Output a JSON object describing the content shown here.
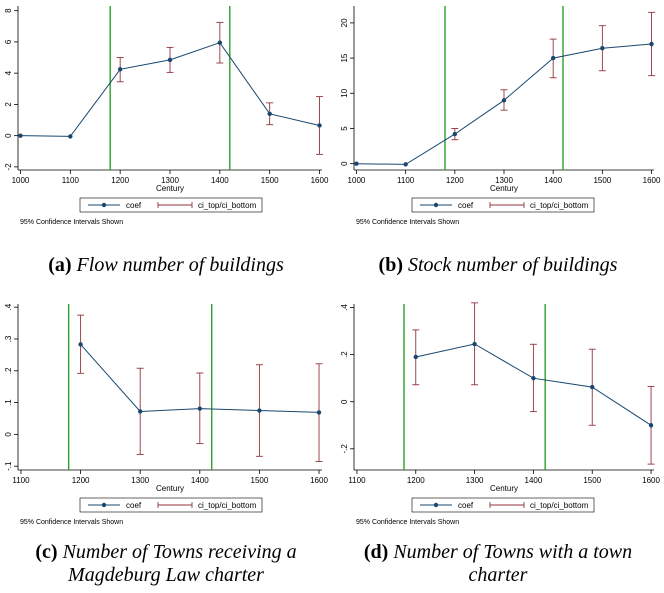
{
  "chart_data": [
    {
      "type": "line",
      "caption_label": "(a)",
      "caption_text": "Flow number of buildings",
      "xlabel": "Century",
      "note": "95% Confidence Intervals Shown",
      "legend": [
        "coef",
        "ci_top/ci_bottom"
      ],
      "legend_position": "bottom",
      "xticks": [
        "1000",
        "1100",
        "1200",
        "1300",
        "1400",
        "1500",
        "1600"
      ],
      "yticks": [
        "-2",
        "0",
        "2",
        "4",
        "6",
        "8"
      ],
      "xlim": [
        995,
        1605
      ],
      "ylim": [
        -2.2,
        8.3
      ],
      "vlines": [
        1180,
        1420
      ],
      "series": [
        {
          "x": [
            1000,
            1100,
            1200,
            1300,
            1400,
            1500,
            1600
          ],
          "coef": [
            0.0,
            -0.05,
            4.25,
            4.85,
            5.95,
            1.4,
            0.65
          ],
          "ci_top": [
            null,
            null,
            5.0,
            5.65,
            7.25,
            2.1,
            2.5
          ],
          "ci_bottom": [
            null,
            null,
            3.45,
            4.05,
            4.65,
            0.7,
            -1.2
          ]
        }
      ]
    },
    {
      "type": "line",
      "caption_label": "(b)",
      "caption_text": "Stock number of buildings",
      "xlabel": "Century",
      "note": "95% Confidence Intervals Shown",
      "legend": [
        "coef",
        "ci_top/ci_bottom"
      ],
      "legend_position": "bottom",
      "xticks": [
        "1000",
        "1100",
        "1200",
        "1300",
        "1400",
        "1500",
        "1600"
      ],
      "yticks": [
        "0",
        "5",
        "10",
        "15",
        "20"
      ],
      "xlim": [
        995,
        1605
      ],
      "ylim": [
        -0.9,
        22.4
      ],
      "vlines": [
        1180,
        1420
      ],
      "series": [
        {
          "x": [
            1000,
            1100,
            1200,
            1300,
            1400,
            1500,
            1600
          ],
          "coef": [
            0.0,
            -0.1,
            4.2,
            9.0,
            15.0,
            16.4,
            17.0
          ],
          "ci_top": [
            null,
            null,
            5.0,
            10.5,
            17.7,
            19.6,
            21.5
          ],
          "ci_bottom": [
            null,
            null,
            3.4,
            7.6,
            12.2,
            13.2,
            12.5
          ]
        }
      ]
    },
    {
      "type": "line",
      "caption_label": "(c)",
      "caption_text": "Number of Towns receiving a Magdeburg Law charter",
      "xlabel": "Century",
      "note": "95% Confidence Intervals Shown",
      "legend": [
        "coef",
        "ci_top/ci_bottom"
      ],
      "legend_position": "bottom",
      "xticks": [
        "1100",
        "1200",
        "1300",
        "1400",
        "1500",
        "1600"
      ],
      "yticks": [
        "-.1",
        "0",
        ".1",
        ".2",
        ".3",
        ".4"
      ],
      "xlim": [
        1095,
        1605
      ],
      "ylim": [
        -0.112,
        0.41
      ],
      "vlines": [
        1180,
        1420
      ],
      "series": [
        {
          "x": [
            1200,
            1300,
            1400,
            1500,
            1600
          ],
          "coef": [
            0.283,
            0.072,
            0.081,
            0.075,
            0.069
          ],
          "ci_top": [
            0.375,
            0.208,
            0.193,
            0.219,
            0.222
          ],
          "ci_bottom": [
            0.192,
            -0.063,
            -0.029,
            -0.069,
            -0.085
          ]
        }
      ]
    },
    {
      "type": "line",
      "caption_label": "(d)",
      "caption_text": "Number of Towns with a town charter",
      "xlabel": "Century",
      "note": "95% Confidence Intervals Shown",
      "legend": [
        "coef",
        "ci_top/ci_bottom"
      ],
      "legend_position": "bottom",
      "xticks": [
        "1100",
        "1200",
        "1300",
        "1400",
        "1500",
        "1600"
      ],
      "yticks": [
        "-.2",
        "0",
        ".2",
        ".4"
      ],
      "xlim": [
        1095,
        1605
      ],
      "ylim": [
        -0.29,
        0.415
      ],
      "vlines": [
        1180,
        1420
      ],
      "series": [
        {
          "x": [
            1200,
            1300,
            1400,
            1500,
            1600
          ],
          "coef": [
            0.19,
            0.245,
            0.1,
            0.062,
            -0.1
          ],
          "ci_top": [
            0.305,
            0.42,
            0.244,
            0.223,
            0.065
          ],
          "ci_bottom": [
            0.072,
            0.072,
            -0.042,
            -0.1,
            -0.265
          ]
        }
      ]
    }
  ]
}
